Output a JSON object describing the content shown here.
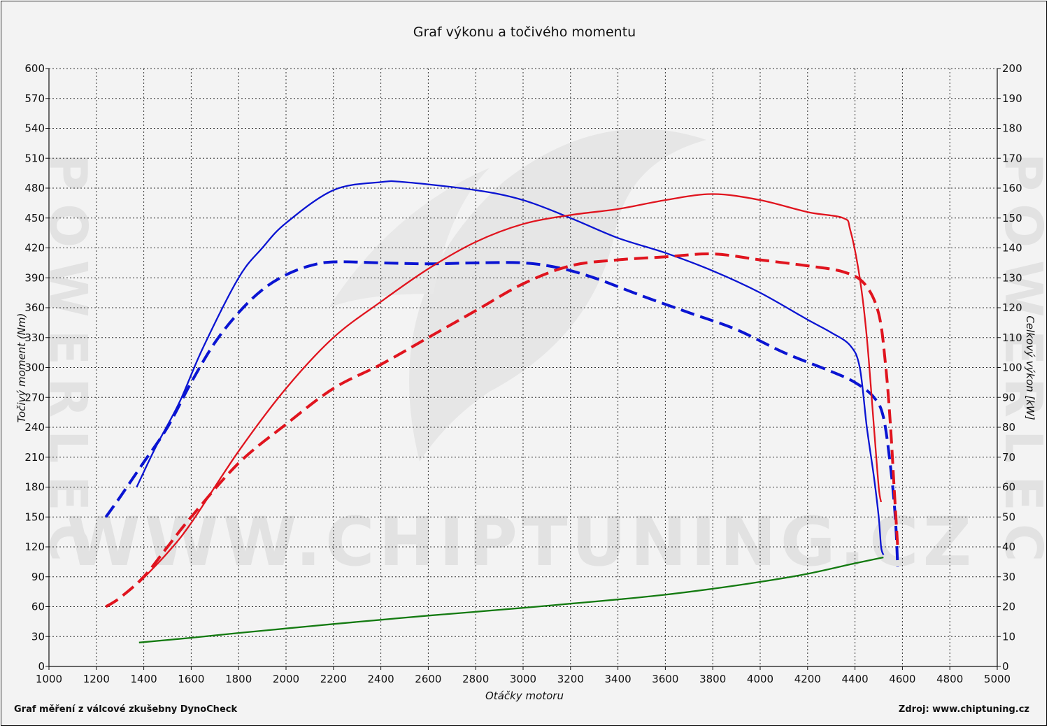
{
  "header": {
    "title": "Graf výkonu a točivého momentu"
  },
  "footer": {
    "left": "Graf měření z válcové zkušebny DynoCheck",
    "right": "Zdroj: www.chiptuning.cz"
  },
  "watermark": {
    "text": "WWW.CHIPTUNING.CZ",
    "side_text": "POWERLEC"
  },
  "colors": {
    "blue": "#0a14d2",
    "red": "#e0141e",
    "green": "#137a10",
    "grid": "#333333",
    "plot_bg": "#f3f3f3"
  },
  "chart_data": {
    "type": "line",
    "title": "Graf výkonu a točivého momentu",
    "xlabel": "Otáčky motoru",
    "ylabel": "Točivý moment (Nm)",
    "y2label": "Celkový výkon [kW]",
    "xlim": [
      1000,
      5000
    ],
    "ylim": [
      0,
      600
    ],
    "y2lim": [
      0,
      200
    ],
    "x_ticks": [
      1000,
      1200,
      1400,
      1600,
      1800,
      2000,
      2200,
      2400,
      2600,
      2800,
      3000,
      3200,
      3400,
      3600,
      3800,
      4000,
      4200,
      4400,
      4600,
      4800,
      5000
    ],
    "y_ticks": [
      0,
      30,
      60,
      90,
      120,
      150,
      180,
      210,
      240,
      270,
      300,
      330,
      360,
      390,
      420,
      450,
      480,
      510,
      540,
      570,
      600
    ],
    "y2_ticks": [
      0,
      10,
      20,
      30,
      40,
      50,
      60,
      70,
      80,
      90,
      100,
      110,
      120,
      130,
      140,
      150,
      160,
      170,
      180,
      190,
      200
    ],
    "grid": true,
    "series": [
      {
        "color": "blue",
        "style": "solid",
        "axis": "left",
        "points": [
          [
            1370,
            180
          ],
          [
            1450,
            220
          ],
          [
            1550,
            265
          ],
          [
            1650,
            320
          ],
          [
            1800,
            390
          ],
          [
            1900,
            420
          ],
          [
            2000,
            445
          ],
          [
            2200,
            478
          ],
          [
            2400,
            486
          ],
          [
            2500,
            486
          ],
          [
            2800,
            478
          ],
          [
            3000,
            468
          ],
          [
            3200,
            450
          ],
          [
            3400,
            430
          ],
          [
            3600,
            415
          ],
          [
            3800,
            397
          ],
          [
            4000,
            375
          ],
          [
            4200,
            348
          ],
          [
            4300,
            335
          ],
          [
            4380,
            322
          ],
          [
            4420,
            300
          ],
          [
            4450,
            240
          ],
          [
            4480,
            190
          ],
          [
            4500,
            150
          ],
          [
            4510,
            120
          ],
          [
            4520,
            112
          ]
        ]
      },
      {
        "color": "blue",
        "style": "dashed",
        "axis": "left",
        "points": [
          [
            1240,
            150
          ],
          [
            1300,
            170
          ],
          [
            1400,
            205
          ],
          [
            1500,
            240
          ],
          [
            1600,
            285
          ],
          [
            1700,
            325
          ],
          [
            1800,
            355
          ],
          [
            1900,
            378
          ],
          [
            2000,
            393
          ],
          [
            2100,
            402
          ],
          [
            2200,
            406
          ],
          [
            2400,
            405
          ],
          [
            2600,
            404
          ],
          [
            2800,
            405
          ],
          [
            3000,
            405
          ],
          [
            3150,
            400
          ],
          [
            3300,
            390
          ],
          [
            3500,
            372
          ],
          [
            3700,
            355
          ],
          [
            3900,
            338
          ],
          [
            4100,
            315
          ],
          [
            4300,
            296
          ],
          [
            4400,
            285
          ],
          [
            4480,
            270
          ],
          [
            4520,
            250
          ],
          [
            4550,
            200
          ],
          [
            4570,
            150
          ],
          [
            4580,
            100
          ]
        ]
      },
      {
        "color": "red",
        "style": "solid",
        "axis": "right",
        "points": [
          [
            1380,
            28
          ],
          [
            1500,
            38
          ],
          [
            1600,
            48
          ],
          [
            1800,
            72
          ],
          [
            2000,
            93
          ],
          [
            2200,
            110
          ],
          [
            2400,
            122
          ],
          [
            2600,
            133
          ],
          [
            2800,
            142
          ],
          [
            3000,
            148
          ],
          [
            3200,
            151
          ],
          [
            3400,
            153
          ],
          [
            3600,
            156
          ],
          [
            3800,
            158
          ],
          [
            4000,
            156
          ],
          [
            4200,
            152
          ],
          [
            4350,
            150
          ],
          [
            4380,
            146
          ],
          [
            4420,
            130
          ],
          [
            4450,
            110
          ],
          [
            4480,
            80
          ],
          [
            4500,
            60
          ],
          [
            4510,
            55
          ]
        ]
      },
      {
        "color": "red",
        "style": "dashed",
        "axis": "right",
        "points": [
          [
            1240,
            20
          ],
          [
            1300,
            23
          ],
          [
            1400,
            30
          ],
          [
            1500,
            40
          ],
          [
            1600,
            50
          ],
          [
            1800,
            68
          ],
          [
            2000,
            81
          ],
          [
            2200,
            93
          ],
          [
            2400,
            101
          ],
          [
            2600,
            110
          ],
          [
            2800,
            119
          ],
          [
            3000,
            128
          ],
          [
            3200,
            134
          ],
          [
            3400,
            136
          ],
          [
            3600,
            137
          ],
          [
            3800,
            138
          ],
          [
            4000,
            136
          ],
          [
            4200,
            134
          ],
          [
            4350,
            132
          ],
          [
            4440,
            128
          ],
          [
            4500,
            118
          ],
          [
            4530,
            100
          ],
          [
            4550,
            80
          ],
          [
            4565,
            60
          ],
          [
            4580,
            40
          ]
        ]
      },
      {
        "color": "green",
        "style": "solid",
        "axis": "right",
        "points": [
          [
            1380,
            8
          ],
          [
            1600,
            9.6
          ],
          [
            1800,
            11.2
          ],
          [
            2000,
            12.7
          ],
          [
            2200,
            14.2
          ],
          [
            2400,
            15.6
          ],
          [
            2600,
            17
          ],
          [
            2800,
            18.3
          ],
          [
            3000,
            19.6
          ],
          [
            3200,
            21
          ],
          [
            3400,
            22.4
          ],
          [
            3600,
            24
          ],
          [
            3800,
            26
          ],
          [
            4000,
            28.3
          ],
          [
            4200,
            31
          ],
          [
            4400,
            34.5
          ],
          [
            4520,
            36.5
          ]
        ]
      }
    ]
  }
}
